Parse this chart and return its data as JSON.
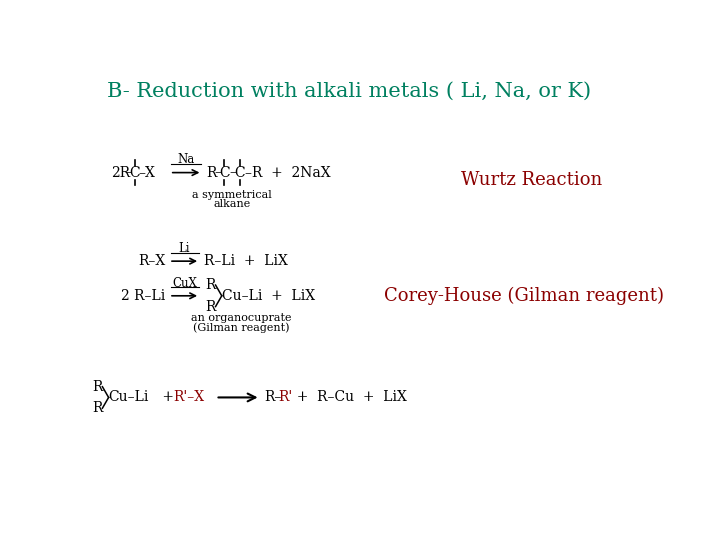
{
  "title": "B- Reduction with alkali metals ( Li, Na, or K)",
  "title_color": "#008060",
  "title_fontsize": 15,
  "background_color": "#ffffff",
  "wurtz_label": "Wurtz Reaction",
  "wurtz_color": "#8B0000",
  "wurtz_fontsize": 13,
  "corey_label": "Corey-House (Gilman reagent)",
  "corey_color": "#8B0000",
  "corey_fontsize": 13,
  "text_color": "#000000",
  "eq_fs": 10,
  "sm_fs": 8.5
}
